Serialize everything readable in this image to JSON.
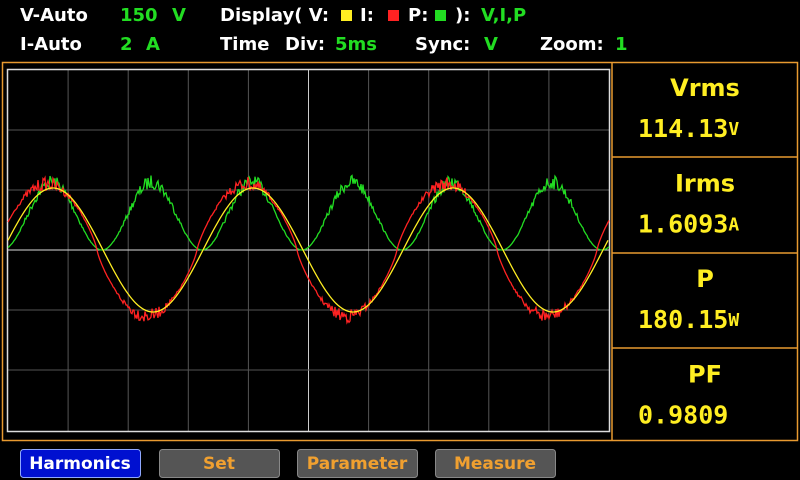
{
  "header": {
    "row1": {
      "range_label": "V-Auto",
      "range_value": "150",
      "range_unit": "V",
      "display_label": "Display( V:",
      "display_i": "I:",
      "display_p": "P:",
      "display_close": "):",
      "display_value": "V,I,P"
    },
    "row2": {
      "range_label": "I-Auto",
      "range_value": "2",
      "range_unit": "A",
      "time_label": "Time",
      "div_label": "Div:",
      "div_value": "5ms",
      "sync_label": "Sync:",
      "sync_value": "V",
      "zoom_label": "Zoom:",
      "zoom_value": "1"
    }
  },
  "readings": [
    {
      "label": "Vrms",
      "value": "114.13",
      "unit": "V"
    },
    {
      "label": "Irms",
      "value": "1.6093",
      "unit": "A"
    },
    {
      "label": "P",
      "value": "180.15",
      "unit": "W"
    },
    {
      "label": "PF",
      "value": "0.9809",
      "unit": ""
    }
  ],
  "buttons": [
    "Harmonics",
    "Set",
    "Parameter",
    "Measure"
  ]
}
